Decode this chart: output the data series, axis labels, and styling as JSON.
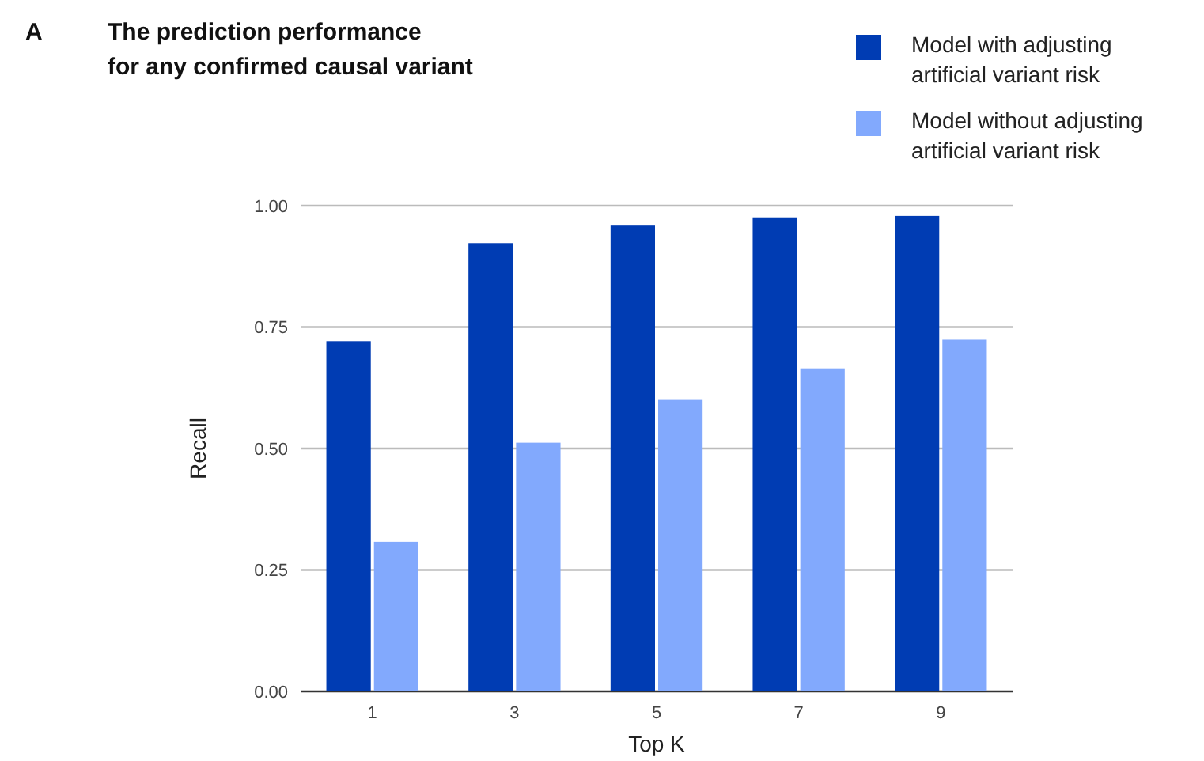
{
  "chart_data": {
    "type": "bar",
    "title": "The prediction performance\nfor any confirmed causal variant",
    "annotations": [
      "A"
    ],
    "xlabel": "Top K",
    "ylabel": "Recall",
    "categories": [
      "1",
      "3",
      "5",
      "7",
      "9"
    ],
    "series": [
      {
        "name": "Model with adjusting\nartificial variant risk",
        "color": "#003cb3",
        "values": [
          0.721,
          0.923,
          0.959,
          0.976,
          0.979
        ]
      },
      {
        "name": "Model without adjusting\nartificial variant risk",
        "color": "#82a9fd",
        "values": [
          0.308,
          0.512,
          0.6,
          0.665,
          0.724
        ]
      }
    ],
    "ylim": [
      0,
      1
    ],
    "yticks": [
      {
        "value": 0,
        "label": "0.00"
      },
      {
        "value": 0.25,
        "label": "0.25"
      },
      {
        "value": 0.5,
        "label": "0.50"
      },
      {
        "value": 0.75,
        "label": "0.75"
      },
      {
        "value": 1,
        "label": "1.00"
      }
    ],
    "grid": "y",
    "legend": "top right"
  }
}
